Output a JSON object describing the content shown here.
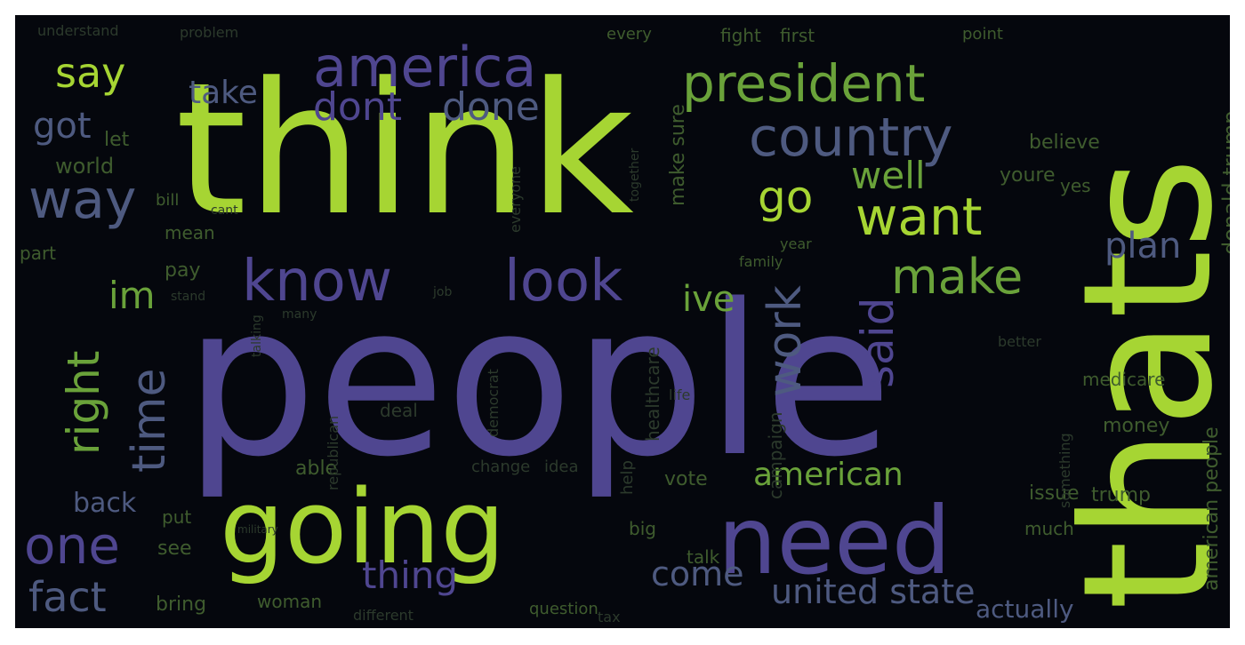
{
  "palette": {
    "background": "#05070d",
    "lime": "#a6d533",
    "green": "#6aa23a",
    "purple": "#4f4690",
    "slate": "#4e5a80",
    "olive": "#3f5c2e",
    "dim": "#2c3a2c"
  },
  "words": [
    {
      "text": "think",
      "color": "lime"
    },
    {
      "text": "people",
      "color": "purple"
    },
    {
      "text": "thats",
      "color": "lime"
    },
    {
      "text": "going",
      "color": "lime"
    },
    {
      "text": "need",
      "color": "purple"
    },
    {
      "text": "america",
      "color": "purple"
    },
    {
      "text": "president",
      "color": "green"
    },
    {
      "text": "country",
      "color": "slate"
    },
    {
      "text": "know",
      "color": "purple"
    },
    {
      "text": "look",
      "color": "purple"
    },
    {
      "text": "want",
      "color": "lime"
    },
    {
      "text": "make",
      "color": "green"
    },
    {
      "text": "way",
      "color": "slate"
    },
    {
      "text": "say",
      "color": "lime"
    },
    {
      "text": "dont",
      "color": "purple"
    },
    {
      "text": "done",
      "color": "slate"
    },
    {
      "text": "go",
      "color": "lime"
    },
    {
      "text": "well",
      "color": "green"
    },
    {
      "text": "one",
      "color": "purple"
    },
    {
      "text": "got",
      "color": "slate"
    },
    {
      "text": "take",
      "color": "slate"
    },
    {
      "text": "im",
      "color": "green"
    },
    {
      "text": "right",
      "color": "green"
    },
    {
      "text": "time",
      "color": "slate"
    },
    {
      "text": "work",
      "color": "slate"
    },
    {
      "text": "said",
      "color": "purple"
    },
    {
      "text": "ive",
      "color": "green"
    },
    {
      "text": "plan",
      "color": "slate"
    },
    {
      "text": "american",
      "color": "green"
    },
    {
      "text": "united state",
      "color": "slate"
    },
    {
      "text": "come",
      "color": "slate"
    },
    {
      "text": "thing",
      "color": "purple"
    },
    {
      "text": "fact",
      "color": "slate"
    },
    {
      "text": "back",
      "color": "slate"
    },
    {
      "text": "bring",
      "color": "olive"
    },
    {
      "text": "woman",
      "color": "olive"
    },
    {
      "text": "question",
      "color": "olive"
    },
    {
      "text": "actually",
      "color": "slate"
    },
    {
      "text": "see",
      "color": "olive"
    },
    {
      "text": "put",
      "color": "olive"
    },
    {
      "text": "able",
      "color": "olive"
    },
    {
      "text": "pay",
      "color": "olive"
    },
    {
      "text": "world",
      "color": "olive"
    },
    {
      "text": "let",
      "color": "olive"
    },
    {
      "text": "bill",
      "color": "olive"
    },
    {
      "text": "mean",
      "color": "olive"
    },
    {
      "text": "part",
      "color": "olive"
    },
    {
      "text": "every",
      "color": "olive"
    },
    {
      "text": "fight",
      "color": "olive"
    },
    {
      "text": "first",
      "color": "olive"
    },
    {
      "text": "point",
      "color": "olive"
    },
    {
      "text": "understand",
      "color": "dim"
    },
    {
      "text": "problem",
      "color": "dim"
    },
    {
      "text": "believe",
      "color": "olive"
    },
    {
      "text": "youre",
      "color": "olive"
    },
    {
      "text": "yes",
      "color": "olive"
    },
    {
      "text": "donald trump",
      "color": "olive"
    },
    {
      "text": "make sure",
      "color": "olive"
    },
    {
      "text": "medicare",
      "color": "olive"
    },
    {
      "text": "money",
      "color": "olive"
    },
    {
      "text": "issue",
      "color": "olive"
    },
    {
      "text": "trump",
      "color": "olive"
    },
    {
      "text": "american people",
      "color": "olive"
    },
    {
      "text": "much",
      "color": "olive"
    },
    {
      "text": "talk",
      "color": "olive"
    },
    {
      "text": "big",
      "color": "olive"
    },
    {
      "text": "vote",
      "color": "olive"
    },
    {
      "text": "change",
      "color": "dim"
    },
    {
      "text": "idea",
      "color": "dim"
    },
    {
      "text": "deal",
      "color": "dim"
    },
    {
      "text": "help",
      "color": "dim"
    },
    {
      "text": "healthcare",
      "color": "dim"
    },
    {
      "text": "campaign",
      "color": "dim"
    },
    {
      "text": "year",
      "color": "olive"
    },
    {
      "text": "family",
      "color": "olive"
    },
    {
      "text": "better",
      "color": "dim"
    },
    {
      "text": "job",
      "color": "dim"
    },
    {
      "text": "stand",
      "color": "dim"
    },
    {
      "text": "democrat",
      "color": "dim"
    },
    {
      "text": "republican",
      "color": "dim"
    },
    {
      "text": "something",
      "color": "dim"
    },
    {
      "text": "life",
      "color": "dim"
    },
    {
      "text": "everyone",
      "color": "dim"
    },
    {
      "text": "together",
      "color": "dim"
    },
    {
      "text": "cant",
      "color": "dim"
    },
    {
      "text": "talking",
      "color": "dim"
    },
    {
      "text": "many",
      "color": "dim"
    },
    {
      "text": "military",
      "color": "dim"
    },
    {
      "text": "different",
      "color": "dim"
    },
    {
      "text": "tax",
      "color": "dim"
    }
  ]
}
